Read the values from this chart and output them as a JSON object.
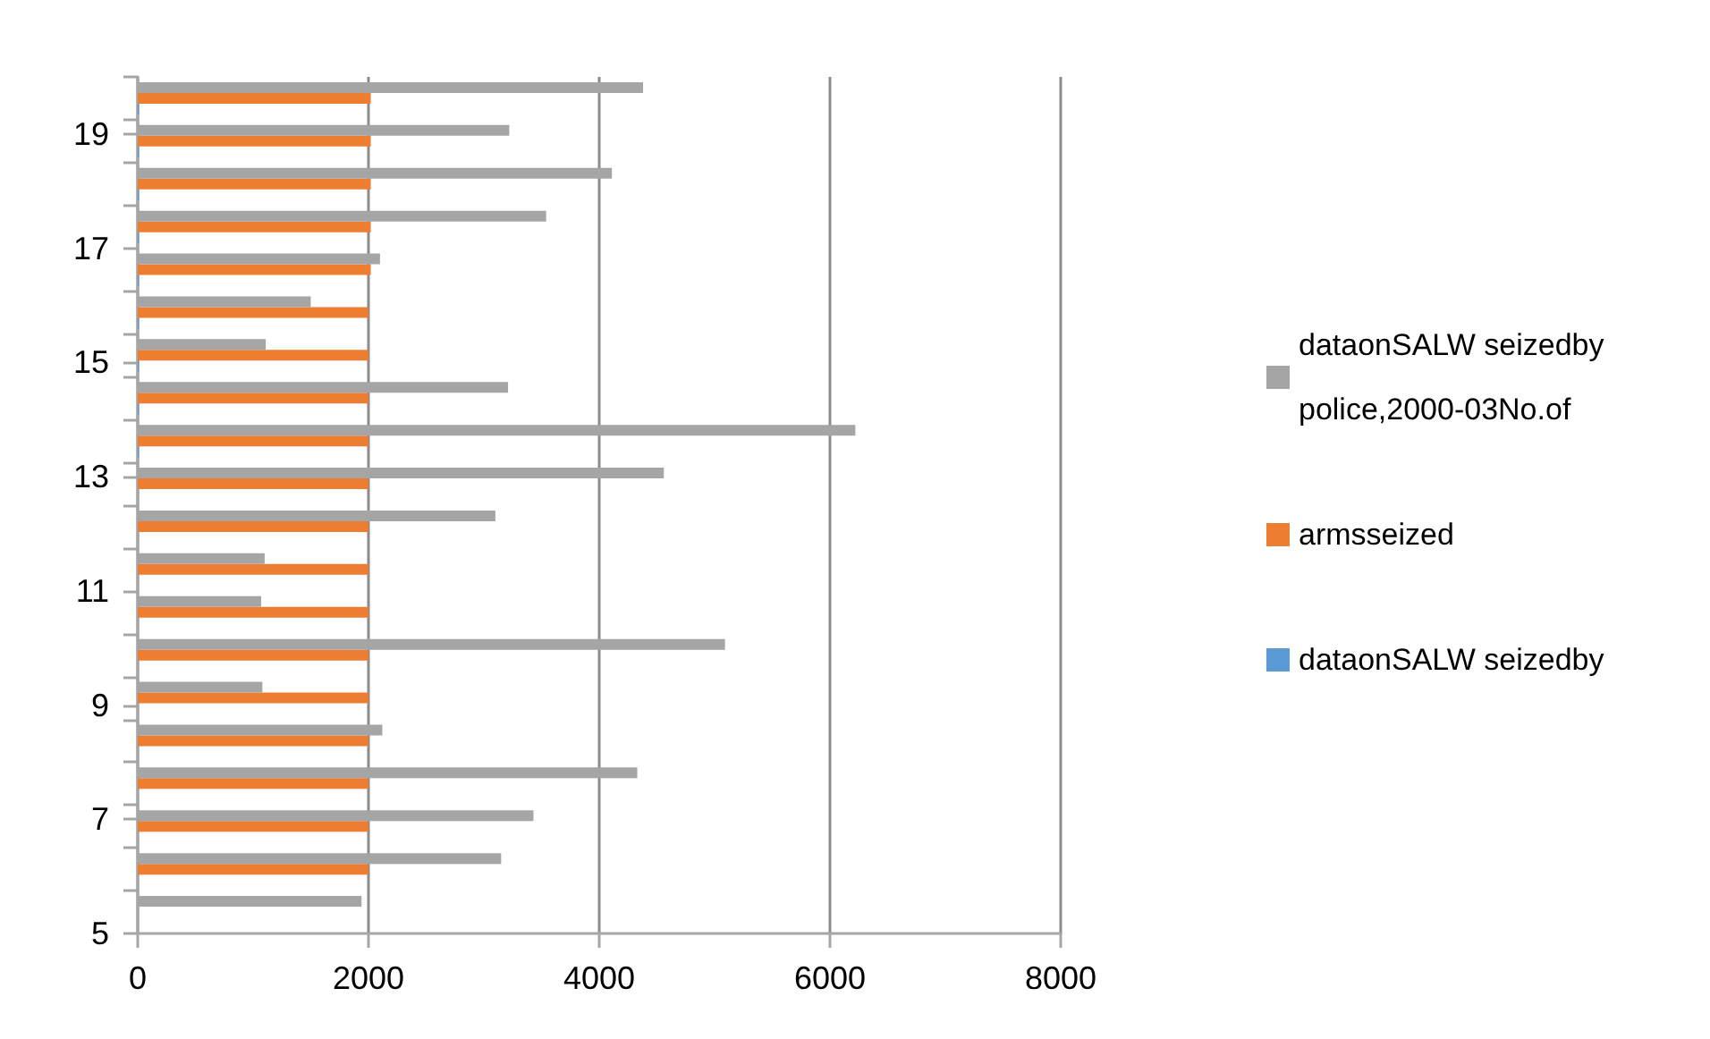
{
  "chart_data": {
    "type": "bar",
    "orientation": "horizontal",
    "x": [
      5.375,
      6.125,
      6.875,
      7.625,
      8.375,
      9.125,
      9.875,
      10.625,
      11.375,
      12.125,
      12.875,
      13.625,
      14.375,
      15.125,
      15.875,
      16.625,
      17.375,
      18.125,
      18.875,
      19.625
    ],
    "series": [
      {
        "name": "dataonSALW seizedby police,2000-03No.of",
        "color": "#a5a5a5",
        "values": [
          1940,
          3150,
          3430,
          4330,
          2120,
          1080,
          5090,
          1070,
          1100,
          3100,
          4560,
          6220,
          3210,
          1110,
          1500,
          2100,
          3540,
          4110,
          3220,
          4380
        ]
      },
      {
        "name": "armsseized",
        "color": "#ed7d31",
        "values": [
          null,
          2000,
          2000,
          2000,
          2000,
          2000,
          2000,
          2000,
          2000,
          2000,
          2000,
          2000,
          2000,
          2000,
          2000,
          2020,
          2020,
          2020,
          2020,
          2020
        ]
      },
      {
        "name": "dataonSALW seizedby",
        "color": "#5b9bd5",
        "values": [
          null,
          null,
          null,
          null,
          null,
          null,
          null,
          null,
          null,
          null,
          null,
          10,
          10,
          10,
          10,
          10,
          10,
          10,
          10,
          10
        ]
      }
    ],
    "xlim": [
      0,
      8000
    ],
    "xticks": [
      0,
      2000,
      4000,
      6000,
      8000
    ],
    "ylim": [
      5,
      20
    ],
    "yticks": [
      5,
      {
        "value": 5.75,
        "label": null
      },
      {
        "value": 6.5,
        "label": null
      },
      7,
      {
        "value": 7.25,
        "label": null
      },
      {
        "value": 8,
        "label": null
      },
      {
        "value": 8.75,
        "label": null
      },
      9,
      {
        "value": 9.5,
        "label": null
      },
      {
        "value": 10.25,
        "label": null
      },
      11,
      {
        "value": 11.75,
        "label": null
      },
      {
        "value": 12.5,
        "label": null
      },
      13,
      {
        "value": 13.25,
        "label": null
      },
      {
        "value": 14,
        "label": null
      },
      {
        "value": 14.75,
        "label": null
      },
      15,
      {
        "value": 15.5,
        "label": null
      },
      {
        "value": 16.25,
        "label": null
      },
      17,
      {
        "value": 17.75,
        "label": null
      },
      {
        "value": 18.5,
        "label": null
      },
      19,
      {
        "value": 19.25,
        "label": null
      },
      {
        "value": 20,
        "label": null
      }
    ],
    "grid": "x",
    "legend": "right"
  }
}
